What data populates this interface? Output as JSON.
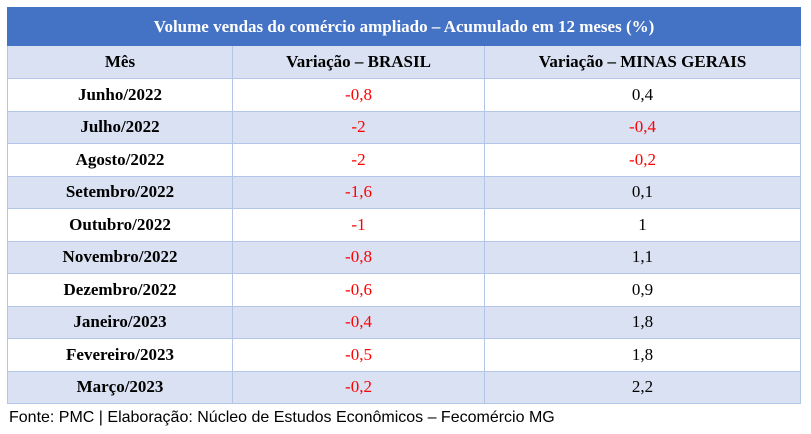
{
  "table": {
    "title": "Volume vendas do comércio ampliado – Acumulado em 12 meses (%)",
    "header": [
      "Mês",
      "Variação – BRASIL",
      "Variação – MINAS GERAIS"
    ],
    "rows": [
      [
        "Junho/2022",
        "-0,8",
        "0,4"
      ],
      [
        "Julho/2022",
        "-2",
        "-0,4"
      ],
      [
        "Agosto/2022",
        "-2",
        "-0,2"
      ],
      [
        "Setembro/2022",
        "-1,6",
        "0,1"
      ],
      [
        "Outubro/2022",
        "-1",
        "1"
      ],
      [
        "Novembro/2022",
        "-0,8",
        "1,1"
      ],
      [
        "Dezembro/2022",
        "-0,6",
        "0,9"
      ],
      [
        "Janeiro/2023",
        "-0,4",
        "1,8"
      ],
      [
        "Fevereiro/2023",
        "-0,5",
        "1,8"
      ],
      [
        "Março/2023",
        "-0,2",
        "2,2"
      ]
    ],
    "source": "Fonte: PMC | Elaboração: Núcleo de Estudos Econômicos – Fecomércio MG"
  }
}
